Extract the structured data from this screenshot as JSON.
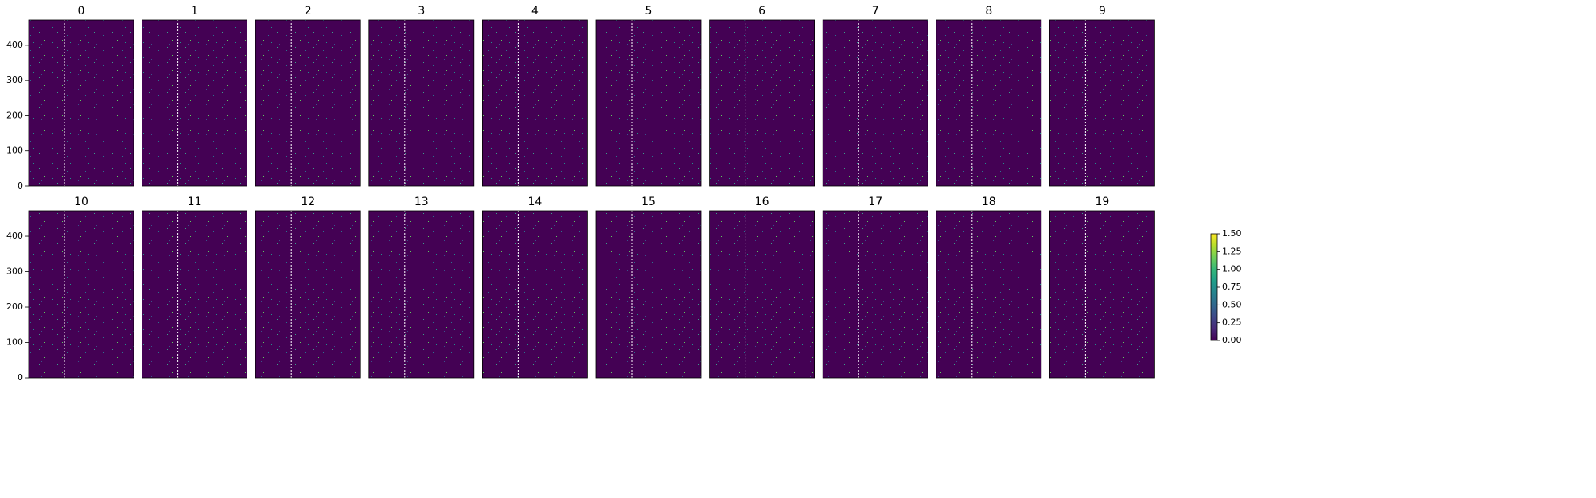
{
  "chart_data": [
    {
      "type": "raster",
      "title": "0",
      "ylim": [
        0,
        472
      ],
      "yticks": [
        0,
        100,
        200,
        300,
        400
      ]
    },
    {
      "type": "raster",
      "title": "1"
    },
    {
      "type": "raster",
      "title": "2"
    },
    {
      "type": "raster",
      "title": "3"
    },
    {
      "type": "raster",
      "title": "4"
    },
    {
      "type": "raster",
      "title": "5"
    },
    {
      "type": "raster",
      "title": "6"
    },
    {
      "type": "raster",
      "title": "7"
    },
    {
      "type": "raster",
      "title": "8"
    },
    {
      "type": "raster",
      "title": "9"
    },
    {
      "type": "raster",
      "title": "10",
      "ylim": [
        0,
        472
      ],
      "yticks": [
        0,
        100,
        200,
        300,
        400
      ]
    },
    {
      "type": "raster",
      "title": "11"
    },
    {
      "type": "raster",
      "title": "12"
    },
    {
      "type": "raster",
      "title": "13"
    },
    {
      "type": "raster",
      "title": "14"
    },
    {
      "type": "raster",
      "title": "15"
    },
    {
      "type": "raster",
      "title": "16"
    },
    {
      "type": "raster",
      "title": "17"
    },
    {
      "type": "raster",
      "title": "18"
    },
    {
      "type": "raster",
      "title": "19"
    },
    {
      "type": "colorbar",
      "colormap": "viridis",
      "ylim": [
        0,
        1.5
      ],
      "yticks": [
        {
          "value": 0,
          "label": "0.00"
        },
        {
          "value": 0.25,
          "label": "0.25"
        },
        {
          "value": 0.5,
          "label": "0.50"
        },
        {
          "value": 0.75,
          "label": "0.75"
        },
        {
          "value": 1,
          "label": "1.00"
        },
        {
          "value": 1.25,
          "label": "1.25"
        },
        {
          "value": 1.5,
          "label": "1.50"
        }
      ]
    }
  ]
}
